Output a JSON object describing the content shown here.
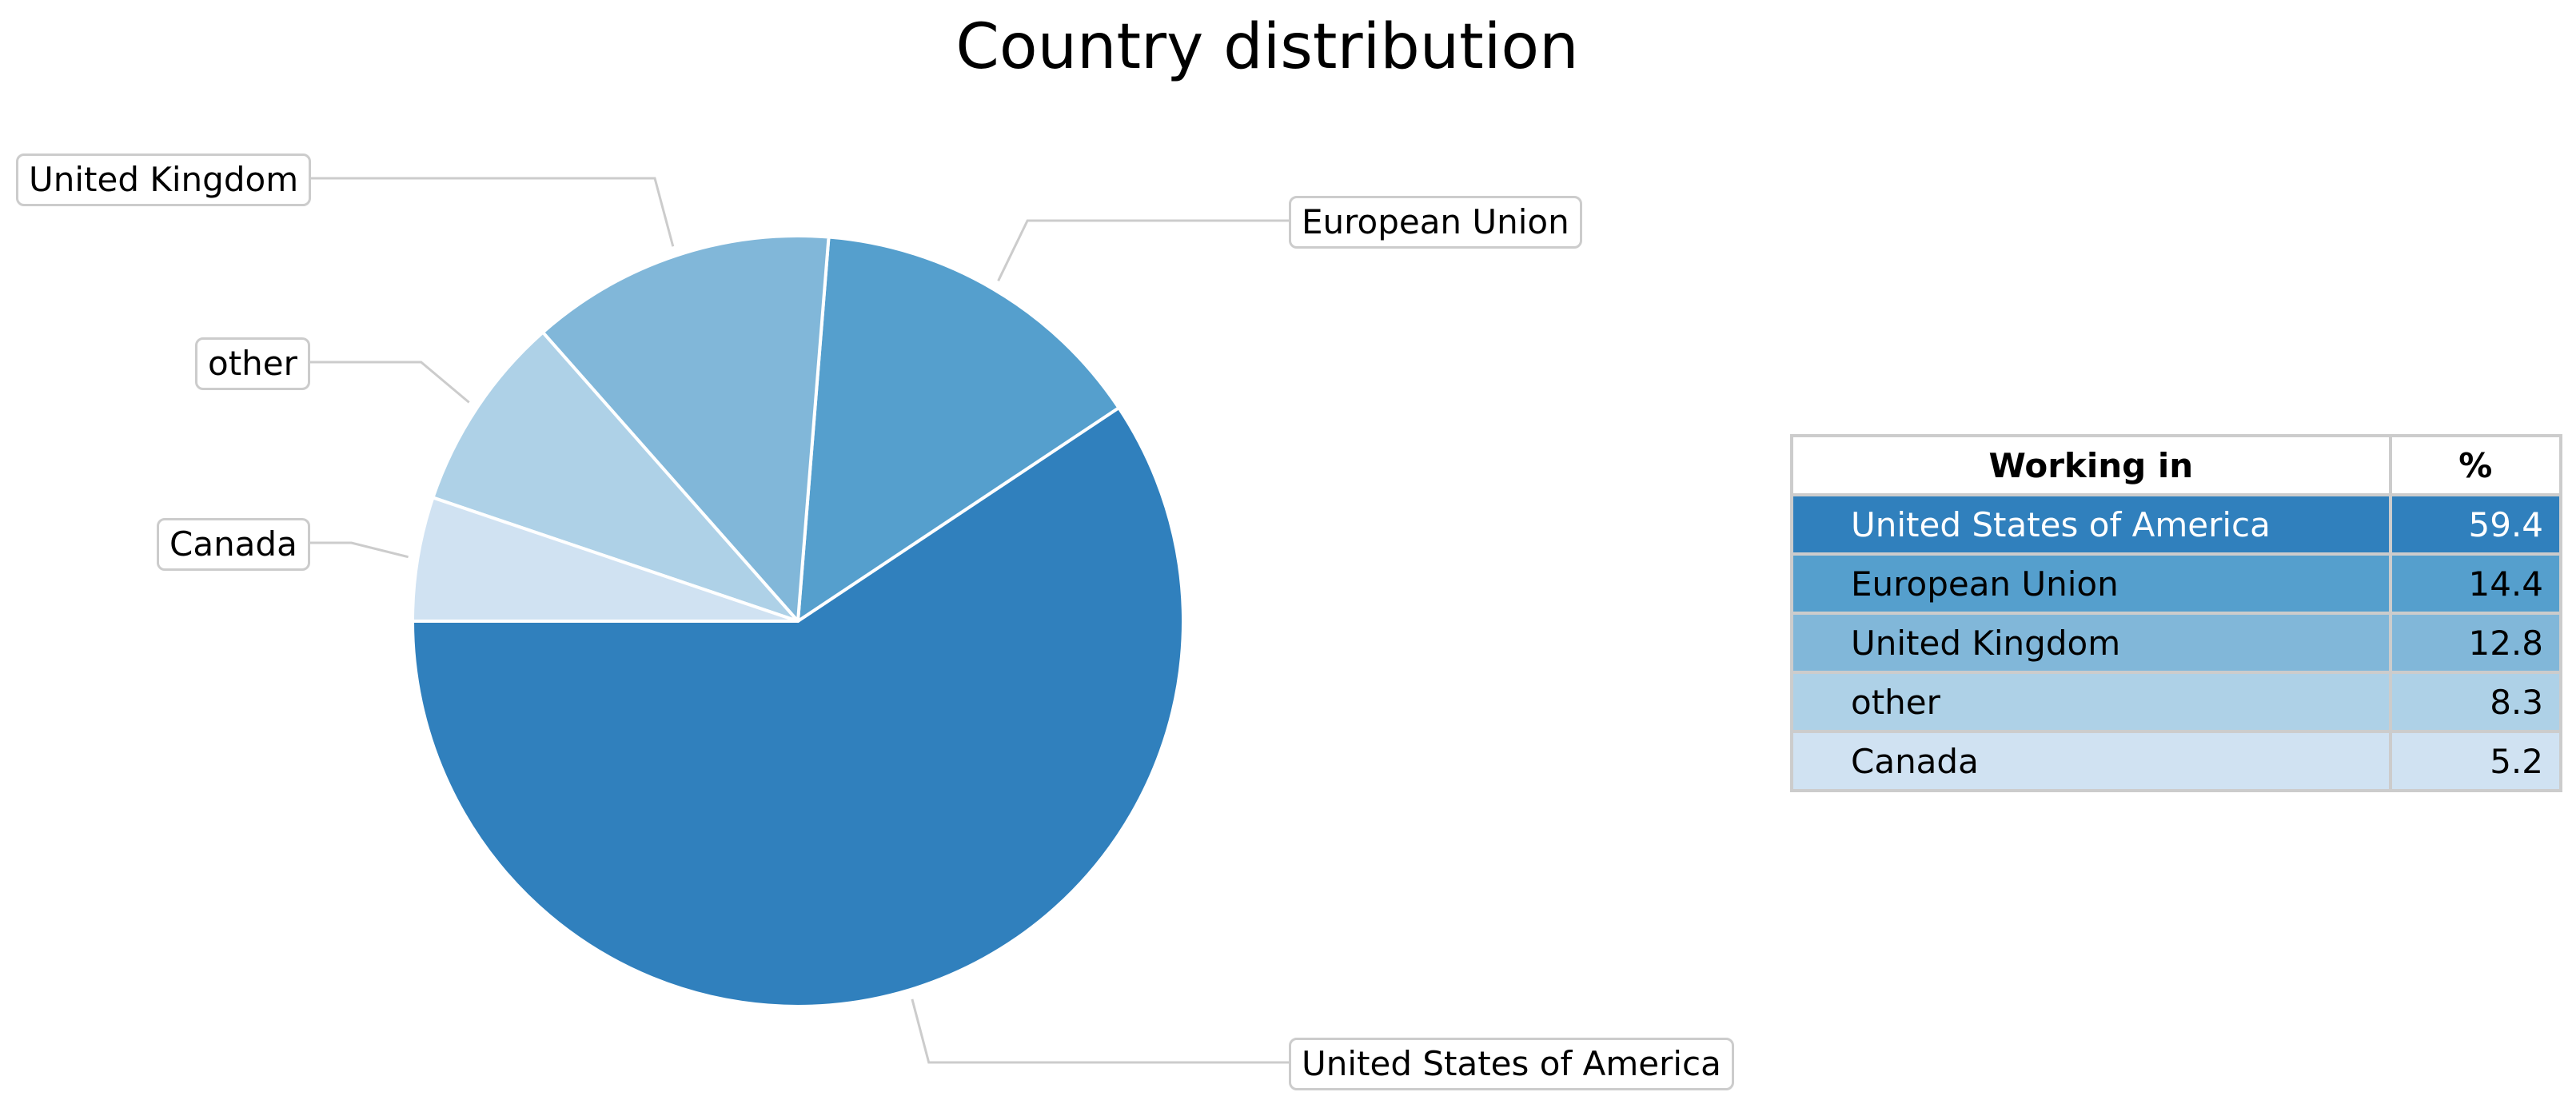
{
  "chart_data": {
    "type": "pie",
    "title": "Country distribution",
    "slices": [
      {
        "label": "United States of America",
        "value": 59.4,
        "color": "#3080bd",
        "text_color": "#ffffff"
      },
      {
        "label": "European Union",
        "value": 14.4,
        "color": "#559fcd",
        "text_color": "#000000"
      },
      {
        "label": "United Kingdom",
        "value": 12.8,
        "color": "#81b7d9",
        "text_color": "#000000"
      },
      {
        "label": "other",
        "value": 8.3,
        "color": "#aed1e7",
        "text_color": "#000000"
      },
      {
        "label": "Canada",
        "value": 5.2,
        "color": "#d0e2f2",
        "text_color": "#000000"
      }
    ],
    "start_angle_deg": 180,
    "direction": "counterclockwise",
    "table": {
      "headers": [
        "Working in",
        "%"
      ]
    }
  }
}
